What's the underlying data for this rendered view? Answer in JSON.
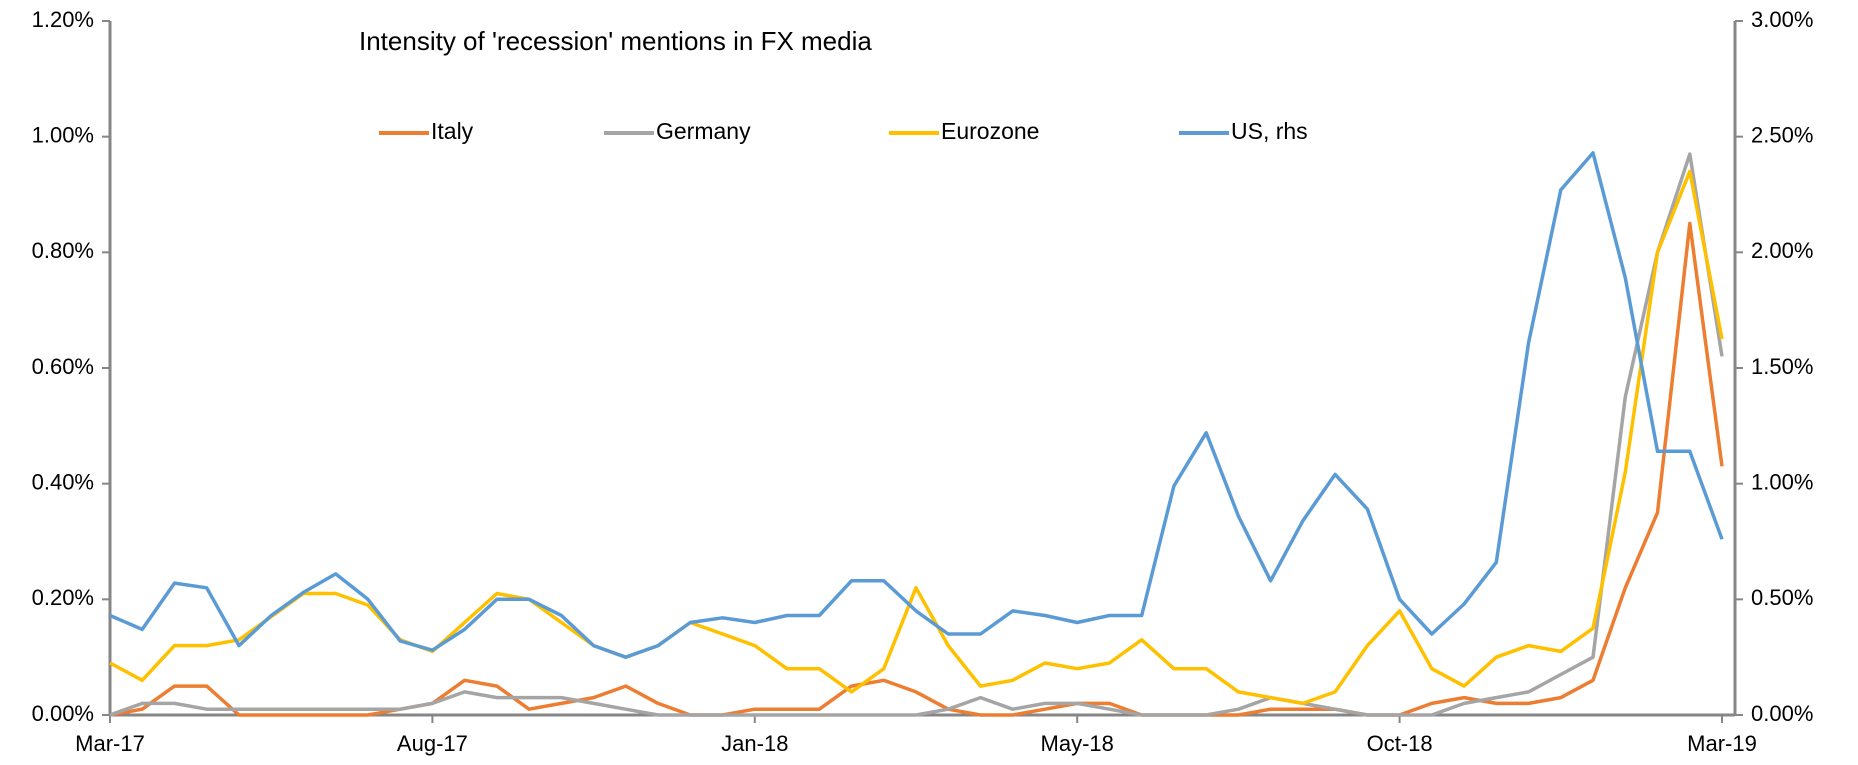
{
  "chart_data": {
    "type": "line",
    "title": "Intensity of 'recession' mentions in FX media",
    "xticks": [
      "Mar-17",
      "Aug-17",
      "Jan-18",
      "May-18",
      "Oct-18",
      "Mar-19"
    ],
    "ylim": [
      0,
      1.2
    ],
    "yticks": [
      {
        "value": 0,
        "label": "0.00%"
      },
      {
        "value": 0.2,
        "label": "0.20%"
      },
      {
        "value": 0.4,
        "label": "0.40%"
      },
      {
        "value": 0.6,
        "label": "0.60%"
      },
      {
        "value": 0.8,
        "label": "0.80%"
      },
      {
        "value": 1.0,
        "label": "1.00%"
      },
      {
        "value": 1.2,
        "label": "1.20%"
      }
    ],
    "y2lim": [
      0,
      3
    ],
    "y2ticks": [
      {
        "value": 0,
        "label": "0.00%"
      },
      {
        "value": 0.5,
        "label": "0.50%"
      },
      {
        "value": 1.0,
        "label": "1.00%"
      },
      {
        "value": 1.5,
        "label": "1.50%"
      },
      {
        "value": 2.0,
        "label": "2.00%"
      },
      {
        "value": 2.5,
        "label": "2.50%"
      },
      {
        "value": 3.0,
        "label": "3.00%"
      }
    ],
    "grid": false,
    "legend": "top",
    "series": [
      {
        "name": "Italy",
        "color": "#ed7d31",
        "axis": "y",
        "values": [
          0,
          0.01,
          0.05,
          0.05,
          0,
          0,
          0,
          0,
          0,
          0.01,
          0.02,
          0.06,
          0.05,
          0.01,
          0.02,
          0.03,
          0.05,
          0.02,
          0,
          0,
          0.01,
          0.01,
          0.01,
          0.05,
          0.06,
          0.04,
          0.01,
          0,
          0,
          0.01,
          0.02,
          0.02,
          0,
          0,
          0,
          0,
          0.01,
          0.01,
          0.01,
          0,
          0,
          0.02,
          0.03,
          0.02,
          0.02,
          0.03,
          0.06,
          0.22,
          0.35,
          0.85,
          0.43
        ]
      },
      {
        "name": "Germany",
        "color": "#a5a5a5",
        "axis": "y",
        "values": [
          0,
          0.02,
          0.02,
          0.01,
          0.01,
          0.01,
          0.01,
          0.01,
          0.01,
          0.01,
          0.02,
          0.04,
          0.03,
          0.03,
          0.03,
          0.02,
          0.01,
          0,
          0,
          0,
          0,
          0,
          0,
          0,
          0,
          0,
          0.01,
          0.03,
          0.01,
          0.02,
          0.02,
          0.01,
          0,
          0,
          0,
          0.01,
          0.03,
          0.02,
          0.01,
          0,
          0,
          0,
          0.02,
          0.03,
          0.04,
          0.07,
          0.1,
          0.55,
          0.8,
          0.97,
          0.62
        ]
      },
      {
        "name": "Eurozone",
        "color": "#ffc000",
        "axis": "y",
        "values": [
          0.09,
          0.06,
          0.12,
          0.12,
          0.13,
          0.17,
          0.21,
          0.21,
          0.19,
          0.13,
          0.11,
          0.16,
          0.21,
          0.2,
          0.16,
          0.12,
          0.1,
          0.12,
          0.16,
          0.14,
          0.12,
          0.08,
          0.08,
          0.04,
          0.08,
          0.22,
          0.12,
          0.05,
          0.06,
          0.09,
          0.08,
          0.09,
          0.13,
          0.08,
          0.08,
          0.04,
          0.03,
          0.02,
          0.04,
          0.12,
          0.18,
          0.08,
          0.05,
          0.1,
          0.12,
          0.11,
          0.15,
          0.42,
          0.8,
          0.94,
          0.65
        ]
      },
      {
        "name": "US, rhs",
        "color": "#5b9bd5",
        "axis": "y2",
        "values": [
          0.43,
          0.37,
          0.57,
          0.55,
          0.3,
          0.43,
          0.53,
          0.61,
          0.5,
          0.32,
          0.28,
          0.37,
          0.5,
          0.5,
          0.43,
          0.3,
          0.25,
          0.3,
          0.4,
          0.42,
          0.4,
          0.43,
          0.43,
          0.58,
          0.58,
          0.45,
          0.35,
          0.35,
          0.45,
          0.43,
          0.4,
          0.43,
          0.43,
          0.99,
          1.22,
          0.86,
          0.58,
          0.84,
          1.04,
          0.89,
          0.5,
          0.35,
          0.48,
          0.66,
          1.61,
          2.27,
          2.43,
          1.89,
          1.14,
          1.14,
          0.76
        ]
      }
    ]
  }
}
